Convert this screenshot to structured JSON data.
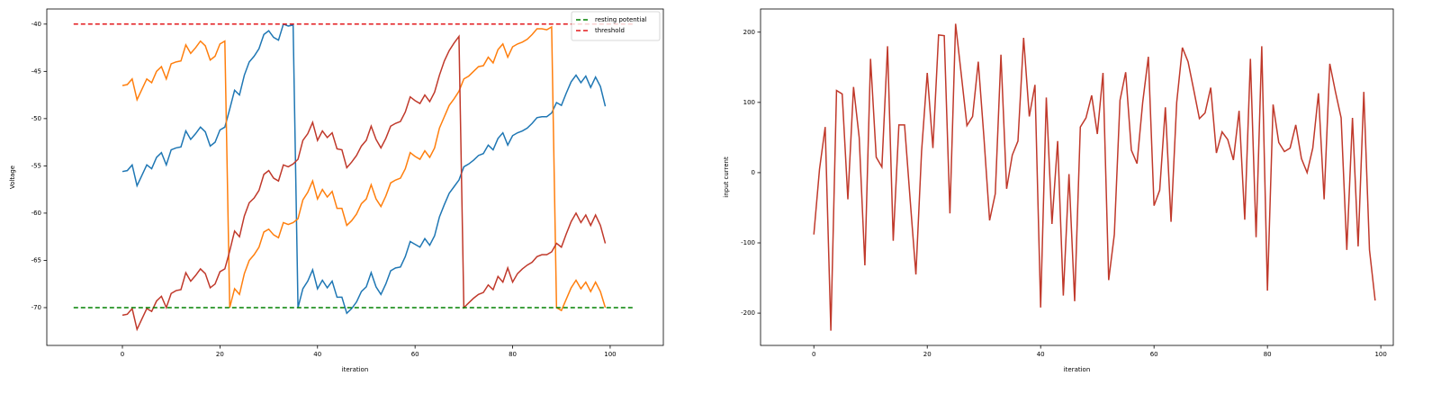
{
  "chart_data": [
    {
      "type": "line",
      "xlabel": "iteration",
      "ylabel": "Voltage",
      "xlim": [
        -15.5,
        110.9
      ],
      "ylim": [
        -74,
        -38.4
      ],
      "xticks": [
        0,
        20,
        40,
        60,
        80,
        100
      ],
      "yticks": [
        -70,
        -65,
        -60,
        -55,
        -50,
        -45,
        -40
      ],
      "legend": "upper right",
      "x": [
        0,
        1,
        2,
        3,
        4,
        5,
        6,
        7,
        8,
        9,
        10,
        11,
        12,
        13,
        14,
        15,
        16,
        17,
        18,
        19,
        20,
        21,
        22,
        23,
        24,
        25,
        26,
        27,
        28,
        29,
        30,
        31,
        32,
        33,
        34,
        35,
        36,
        37,
        38,
        39,
        40,
        41,
        42,
        43,
        44,
        45,
        46,
        47,
        48,
        49,
        50,
        51,
        52,
        53,
        54,
        55,
        56,
        57,
        58,
        59,
        60,
        61,
        62,
        63,
        64,
        65,
        66,
        67,
        68,
        69,
        70,
        71,
        72,
        73,
        74,
        75,
        76,
        77,
        78,
        79,
        80,
        81,
        82,
        83,
        84,
        85,
        86,
        87,
        88,
        89,
        90,
        91,
        92,
        93,
        94,
        95,
        96,
        97,
        98,
        99
      ],
      "series": [
        {
          "color": "#1f77b4",
          "values": [
            -55.6,
            -55.5,
            -54.9,
            -57.1,
            -56,
            -54.9,
            -55.3,
            -54.1,
            -53.6,
            -54.9,
            -53.3,
            -53.1,
            -53,
            -51.3,
            -52.2,
            -51.6,
            -50.9,
            -51.4,
            -52.9,
            -52.5,
            -51.2,
            -50.9,
            -49,
            -47,
            -47.5,
            -45.4,
            -44,
            -43.4,
            -42.6,
            -41.1,
            -40.7,
            -41.4,
            -41.7,
            -40,
            -40.2,
            -40.1,
            -70,
            -68,
            -67.2,
            -66,
            -68,
            -67.1,
            -67.9,
            -67.2,
            -68.9,
            -68.9,
            -70.6,
            -70.1,
            -69.4,
            -68.3,
            -67.8,
            -66.3,
            -67.8,
            -68.6,
            -67.5,
            -66.1,
            -65.8,
            -65.7,
            -64.6,
            -63,
            -63.3,
            -63.6,
            -62.7,
            -63.4,
            -62.4,
            -60.4,
            -59.1,
            -57.9,
            -57.2,
            -56.5,
            -55.1,
            -54.8,
            -54.4,
            -53.9,
            -53.7,
            -52.8,
            -53.3,
            -52.1,
            -51.5,
            -52.8,
            -51.8,
            -51.5,
            -51.3,
            -51,
            -50.5,
            -49.9,
            -49.8,
            -49.8,
            -49.4,
            -48.3,
            -48.6,
            -47.3,
            -46.1,
            -45.4,
            -46.2,
            -45.5,
            -46.7,
            -45.6,
            -46.6,
            -48.7
          ]
        },
        {
          "color": "#ff7f0e",
          "values": [
            -46.5,
            -46.4,
            -45.8,
            -48,
            -46.9,
            -45.8,
            -46.2,
            -45,
            -44.5,
            -45.8,
            -44.2,
            -44,
            -43.9,
            -42.2,
            -43.1,
            -42.5,
            -41.8,
            -42.3,
            -43.8,
            -43.4,
            -42.1,
            -41.8,
            -70,
            -68,
            -68.6,
            -66.4,
            -65,
            -64.4,
            -63.6,
            -62,
            -61.7,
            -62.3,
            -62.6,
            -61,
            -61.2,
            -61,
            -60.6,
            -58.6,
            -57.8,
            -56.6,
            -58.5,
            -57.5,
            -58.3,
            -57.7,
            -59.5,
            -59.5,
            -61.3,
            -60.8,
            -60.1,
            -59,
            -58.5,
            -57,
            -58.5,
            -59.3,
            -58.2,
            -56.8,
            -56.5,
            -56.3,
            -55.3,
            -53.6,
            -54,
            -54.3,
            -53.4,
            -54.1,
            -53.1,
            -51,
            -49.8,
            -48.6,
            -47.9,
            -47.1,
            -45.8,
            -45.5,
            -45,
            -44.5,
            -44.4,
            -43.5,
            -44.1,
            -42.7,
            -42.1,
            -43.5,
            -42.4,
            -42.1,
            -41.9,
            -41.6,
            -41.1,
            -40.5,
            -40.5,
            -40.6,
            -40.3,
            -70,
            -70.3,
            -69.1,
            -67.9,
            -67.1,
            -68,
            -67.3,
            -68.3,
            -67.3,
            -68.3,
            -70
          ]
        },
        {
          "color": "#c0392b",
          "values": [
            -70.8,
            -70.7,
            -70.1,
            -72.3,
            -71.2,
            -70.1,
            -70.4,
            -69.3,
            -68.8,
            -70,
            -68.5,
            -68.2,
            -68.1,
            -66.3,
            -67.2,
            -66.6,
            -65.9,
            -66.4,
            -67.9,
            -67.5,
            -66.2,
            -65.9,
            -64,
            -61.9,
            -62.5,
            -60.3,
            -58.9,
            -58.4,
            -57.6,
            -55.9,
            -55.5,
            -56.3,
            -56.6,
            -54.9,
            -55.1,
            -54.8,
            -54.3,
            -52.3,
            -51.6,
            -50.4,
            -52.3,
            -51.3,
            -52,
            -51.5,
            -53.2,
            -53.3,
            -55.2,
            -54.6,
            -53.9,
            -52.9,
            -52.3,
            -50.8,
            -52.2,
            -53.1,
            -52.1,
            -50.8,
            -50.5,
            -50.3,
            -49.3,
            -47.7,
            -48.1,
            -48.4,
            -47.5,
            -48.2,
            -47.2,
            -45.4,
            -43.9,
            -42.8,
            -42,
            -41.3,
            -70,
            -69.5,
            -69,
            -68.6,
            -68.4,
            -67.6,
            -68.1,
            -66.7,
            -67.3,
            -65.8,
            -67.3,
            -66.4,
            -65.9,
            -65.5,
            -65.2,
            -64.6,
            -64.4,
            -64.4,
            -64.1,
            -63.2,
            -63.6,
            -62.2,
            -60.9,
            -60,
            -61,
            -60.2,
            -61.3,
            -60.2,
            -61.3,
            -63.2
          ]
        },
        {
          "name": "resting potential",
          "color": "#008000",
          "dashed": true,
          "x": [
            -10,
            105
          ],
          "values": [
            -70,
            -70
          ]
        },
        {
          "name": "threshold",
          "color": "#e31a1c",
          "dashed": true,
          "x": [
            -10,
            105
          ],
          "values": [
            -40,
            -40
          ]
        }
      ]
    },
    {
      "type": "line",
      "xlabel": "iteration",
      "ylabel": "input current",
      "xlim": [
        -9.4,
        102.2
      ],
      "ylim": [
        -246,
        233
      ],
      "xticks": [
        0,
        20,
        40,
        60,
        80,
        100
      ],
      "yticks": [
        -200,
        -100,
        0,
        100,
        200
      ],
      "x": [
        0,
        1,
        2,
        3,
        4,
        5,
        6,
        7,
        8,
        9,
        10,
        11,
        12,
        13,
        14,
        15,
        16,
        17,
        18,
        19,
        20,
        21,
        22,
        23,
        24,
        25,
        26,
        27,
        28,
        29,
        30,
        31,
        32,
        33,
        34,
        35,
        36,
        37,
        38,
        39,
        40,
        41,
        42,
        43,
        44,
        45,
        46,
        47,
        48,
        49,
        50,
        51,
        52,
        53,
        54,
        55,
        56,
        57,
        58,
        59,
        60,
        61,
        62,
        63,
        64,
        65,
        66,
        67,
        68,
        69,
        70,
        71,
        72,
        73,
        74,
        75,
        76,
        77,
        78,
        79,
        80,
        81,
        82,
        83,
        84,
        85,
        86,
        87,
        88,
        89,
        90,
        91,
        92,
        93,
        94,
        95,
        96,
        97,
        98,
        99
      ],
      "series": [
        {
          "color": "#c0392b",
          "values": [
            -88,
            5,
            65,
            -225,
            117,
            112,
            -38,
            122,
            50,
            -132,
            162,
            22,
            8,
            180,
            -97,
            68,
            68,
            -40,
            -145,
            30,
            142,
            35,
            196,
            195,
            -58,
            212,
            140,
            67,
            80,
            158,
            50,
            -68,
            -30,
            168,
            -23,
            25,
            45,
            192,
            80,
            125,
            -192,
            107,
            -73,
            45,
            -175,
            -2,
            -183,
            65,
            78,
            110,
            55,
            142,
            -153,
            -88,
            103,
            143,
            32,
            13,
            100,
            165,
            -47,
            -25,
            93,
            -70,
            100,
            178,
            158,
            118,
            77,
            85,
            121,
            28,
            58,
            47,
            18,
            88,
            -67,
            162,
            -92,
            180,
            -168,
            97,
            43,
            30,
            35,
            68,
            20,
            0,
            35,
            113,
            -38,
            155,
            115,
            78,
            -110,
            78,
            -105,
            115,
            -110,
            -182
          ]
        }
      ]
    }
  ]
}
